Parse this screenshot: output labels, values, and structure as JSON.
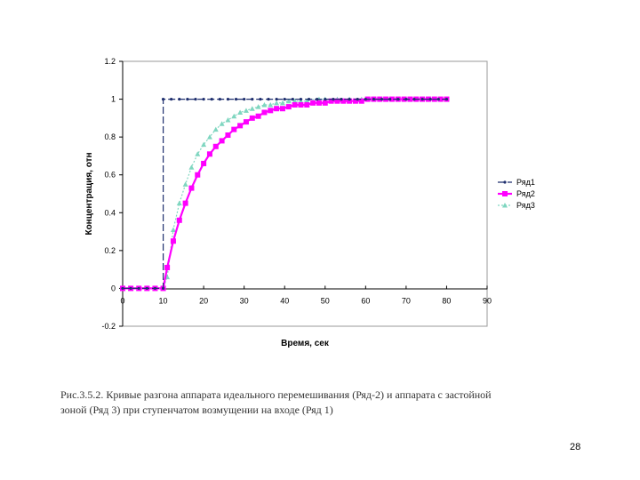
{
  "chart_data": {
    "type": "line",
    "xlabel": "Время, сек",
    "ylabel": "Концентрация, отн",
    "xlim": [
      0,
      90
    ],
    "ylim": [
      -0.2,
      1.2
    ],
    "x_ticks": [
      "0",
      "10",
      "20",
      "30",
      "40",
      "50",
      "60",
      "70",
      "80",
      "90"
    ],
    "y_ticks": [
      "-0.2",
      "0",
      "0.2",
      "0.4",
      "0.6",
      "0.8",
      "1",
      "1.2"
    ],
    "grid": false,
    "legend_position": "right",
    "series": [
      {
        "name": "Ряд1",
        "color": "#1f2f6e",
        "marker": "dot",
        "points": [
          [
            0,
            0
          ],
          [
            2,
            0
          ],
          [
            4,
            0
          ],
          [
            6,
            0
          ],
          [
            8,
            0
          ],
          [
            10,
            0
          ],
          [
            10,
            1
          ],
          [
            12,
            1
          ],
          [
            14,
            1
          ],
          [
            16,
            1
          ],
          [
            18,
            1
          ],
          [
            20,
            1
          ],
          [
            22,
            1
          ],
          [
            24,
            1
          ],
          [
            26,
            1
          ],
          [
            28,
            1
          ],
          [
            30,
            1
          ],
          [
            32,
            1
          ],
          [
            34,
            1
          ],
          [
            36,
            1
          ],
          [
            38,
            1
          ],
          [
            40,
            1
          ],
          [
            42,
            1
          ],
          [
            44,
            1
          ],
          [
            46,
            1
          ],
          [
            48,
            1
          ],
          [
            50,
            1
          ],
          [
            52,
            1
          ],
          [
            54,
            1
          ],
          [
            56,
            1
          ],
          [
            58,
            1
          ],
          [
            60,
            1
          ],
          [
            62,
            1
          ],
          [
            64,
            1
          ],
          [
            66,
            1
          ],
          [
            68,
            1
          ],
          [
            70,
            1
          ],
          [
            72,
            1
          ],
          [
            74,
            1
          ],
          [
            76,
            1
          ],
          [
            78,
            1
          ],
          [
            80,
            1
          ]
        ]
      },
      {
        "name": "Ряд2",
        "color": "#ff00ff",
        "marker": "square",
        "points": [
          [
            0,
            0
          ],
          [
            2,
            0
          ],
          [
            4,
            0
          ],
          [
            6,
            0
          ],
          [
            8,
            0
          ],
          [
            10,
            0
          ],
          [
            11,
            0.11
          ],
          [
            12.5,
            0.25
          ],
          [
            14,
            0.36
          ],
          [
            15.5,
            0.45
          ],
          [
            17,
            0.53
          ],
          [
            18.5,
            0.6
          ],
          [
            20,
            0.66
          ],
          [
            21.5,
            0.71
          ],
          [
            23,
            0.75
          ],
          [
            24.5,
            0.78
          ],
          [
            26,
            0.81
          ],
          [
            27.5,
            0.84
          ],
          [
            29,
            0.86
          ],
          [
            30.5,
            0.88
          ],
          [
            32,
            0.9
          ],
          [
            33.5,
            0.91
          ],
          [
            35,
            0.93
          ],
          [
            36.5,
            0.94
          ],
          [
            38,
            0.95
          ],
          [
            39.5,
            0.95
          ],
          [
            41,
            0.96
          ],
          [
            42.5,
            0.97
          ],
          [
            44,
            0.97
          ],
          [
            45.5,
            0.97
          ],
          [
            47,
            0.98
          ],
          [
            48.5,
            0.98
          ],
          [
            50,
            0.98
          ],
          [
            51.5,
            0.99
          ],
          [
            53,
            0.99
          ],
          [
            54.5,
            0.99
          ],
          [
            56,
            0.99
          ],
          [
            57.5,
            0.99
          ],
          [
            59,
            0.99
          ],
          [
            60.5,
            1
          ],
          [
            62,
            1
          ],
          [
            63.5,
            1
          ],
          [
            65,
            1
          ],
          [
            66.5,
            1
          ],
          [
            68,
            1
          ],
          [
            69.5,
            1
          ],
          [
            71,
            1
          ],
          [
            72.5,
            1
          ],
          [
            74,
            1
          ],
          [
            75.5,
            1
          ],
          [
            77,
            1
          ],
          [
            78.5,
            1
          ],
          [
            80,
            1
          ]
        ]
      },
      {
        "name": "Ряд3",
        "color": "#7fd6c0",
        "marker": "triangle",
        "points": [
          [
            0,
            0
          ],
          [
            2,
            0
          ],
          [
            4,
            0
          ],
          [
            6,
            0
          ],
          [
            8,
            0
          ],
          [
            10,
            0
          ],
          [
            11,
            0.06
          ],
          [
            12.5,
            0.31
          ],
          [
            14,
            0.45
          ],
          [
            15.5,
            0.55
          ],
          [
            17,
            0.64
          ],
          [
            18.5,
            0.71
          ],
          [
            20,
            0.76
          ],
          [
            21.5,
            0.8
          ],
          [
            23,
            0.84
          ],
          [
            24.5,
            0.87
          ],
          [
            26,
            0.89
          ],
          [
            27.5,
            0.91
          ],
          [
            29,
            0.93
          ],
          [
            30.5,
            0.94
          ],
          [
            32,
            0.95
          ],
          [
            33.5,
            0.96
          ],
          [
            35,
            0.97
          ],
          [
            36.5,
            0.97
          ],
          [
            38,
            0.98
          ],
          [
            39.5,
            0.98
          ],
          [
            41,
            0.99
          ],
          [
            42.5,
            0.99
          ],
          [
            44,
            0.99
          ],
          [
            45.5,
            0.99
          ],
          [
            47,
            0.99
          ],
          [
            48.5,
            1
          ],
          [
            50,
            1
          ],
          [
            53,
            1
          ],
          [
            56,
            1
          ],
          [
            59,
            1
          ],
          [
            62,
            1
          ],
          [
            65,
            1
          ],
          [
            68,
            1
          ],
          [
            71,
            1
          ],
          [
            74,
            1
          ],
          [
            77,
            1
          ],
          [
            80,
            1
          ]
        ]
      }
    ]
  },
  "caption_line1": "Рис.3.5.2. Кривые разгона аппарата идеального перемешивания (Ряд-2) и аппарата с застойной",
  "caption_line2": "зоной (Ряд 3) при ступенчатом возмущении на входе (Ряд 1)",
  "page_number": "28"
}
